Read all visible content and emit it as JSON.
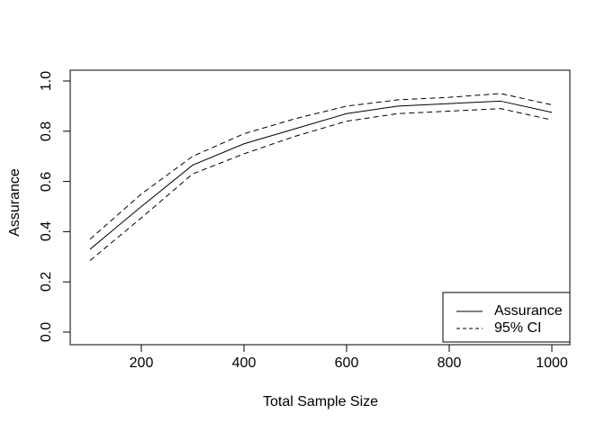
{
  "figure": {
    "background_color": "#ffffff",
    "line_color": "#000000"
  },
  "chart_data": {
    "type": "line",
    "title": "",
    "xlabel": "Total Sample Size",
    "ylabel": "Assurance",
    "x": [
      100,
      200,
      300,
      400,
      500,
      600,
      700,
      800,
      900,
      1000
    ],
    "series": [
      {
        "name": "Assurance",
        "style": "solid",
        "values": [
          0.33,
          0.5,
          0.665,
          0.75,
          0.81,
          0.87,
          0.9,
          0.91,
          0.92,
          0.875
        ]
      },
      {
        "name": "95% CI upper",
        "style": "dashed",
        "values": [
          0.37,
          0.55,
          0.7,
          0.79,
          0.85,
          0.9,
          0.925,
          0.935,
          0.95,
          0.905
        ]
      },
      {
        "name": "95% CI lower",
        "style": "dashed",
        "values": [
          0.285,
          0.455,
          0.63,
          0.71,
          0.78,
          0.84,
          0.87,
          0.88,
          0.89,
          0.845
        ]
      }
    ],
    "x_ticks": [
      "200",
      "400",
      "600",
      "800",
      "1000"
    ],
    "y_ticks": [
      "0.0",
      "0.2",
      "0.4",
      "0.6",
      "0.8",
      "1.0"
    ],
    "xlim": [
      64,
      1036
    ],
    "ylim": [
      -0.043,
      1.047
    ],
    "grid": false,
    "legend": {
      "position": "bottom-right",
      "entries": [
        {
          "label": "Assurance",
          "style": "solid"
        },
        {
          "label": "95% CI",
          "style": "dashed"
        }
      ]
    }
  }
}
